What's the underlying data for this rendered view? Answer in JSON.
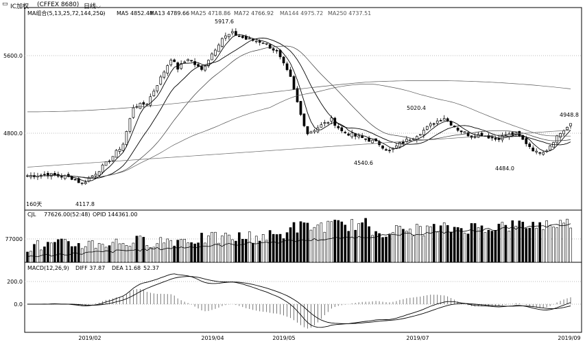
{
  "titlebar": {
    "instrument": "IC加权",
    "code": "(CFFEX 8680)",
    "period": "日线"
  },
  "price_panel": {
    "legend": {
      "ma_group": "MA组合(5,13,25,72,144,250)",
      "ma5": "MA5 4852.44",
      "ma13": "MA13 4789.66",
      "ma25": "MA25 4718.86",
      "ma72": "MA72 4766.92",
      "ma144": "MA144 4975.72",
      "ma250": "MA250 4737.51"
    },
    "axis_ticks": [
      "5600.0",
      "4800.0"
    ],
    "annotations": {
      "high": "5917.6",
      "low_start": "4117.8",
      "low_may": "4540.6",
      "high_jun": "5020.4",
      "low_aug": "4484.0",
      "last": "4948.8"
    },
    "days_label": "160天"
  },
  "volume_panel": {
    "legend": {
      "name": "CJL",
      "value": "77626.00(52:48)",
      "opid": "OPID 144361.00"
    },
    "axis_tick": "77000"
  },
  "macd_panel": {
    "legend": {
      "name": "MACD(12,26,9)",
      "diff": "DIFF 37.87",
      "dea": "DEA 11.68",
      "macd": "52.37"
    },
    "axis_ticks": [
      "200.0",
      "0.0"
    ]
  },
  "x_axis": {
    "labels": [
      "2019/02",
      "2019/04",
      "2019/05",
      "2019/07",
      "2019/09"
    ]
  },
  "chart_data": {
    "type": "candlestick",
    "y_price_ticks": [
      4800,
      5600
    ],
    "y_volume_tick": 77000,
    "y_macd_ticks": [
      0,
      200
    ],
    "anchors": [
      {
        "i": 0,
        "p": 4360
      },
      {
        "i": 6,
        "p": 4375
      },
      {
        "i": 13,
        "p": 4340
      },
      {
        "i": 16,
        "p": 4280
      },
      {
        "i": 20,
        "p": 4390
      },
      {
        "i": 24,
        "p": 4520
      },
      {
        "i": 28,
        "p": 4690
      },
      {
        "i": 31,
        "p": 5070
      },
      {
        "i": 35,
        "p": 5110
      },
      {
        "i": 39,
        "p": 5370
      },
      {
        "i": 42,
        "p": 5570
      },
      {
        "i": 44,
        "p": 5470
      },
      {
        "i": 47,
        "p": 5570
      },
      {
        "i": 51,
        "p": 5450
      },
      {
        "i": 54,
        "p": 5620
      },
      {
        "i": 57,
        "p": 5780
      },
      {
        "i": 60,
        "p": 5830
      },
      {
        "i": 64,
        "p": 5770
      },
      {
        "i": 69,
        "p": 5740
      },
      {
        "i": 73,
        "p": 5640
      },
      {
        "i": 77,
        "p": 5370
      },
      {
        "i": 80,
        "p": 4990
      },
      {
        "i": 82,
        "p": 4800
      },
      {
        "i": 86,
        "p": 4880
      },
      {
        "i": 89,
        "p": 4940
      },
      {
        "i": 92,
        "p": 4820
      },
      {
        "i": 96,
        "p": 4770
      },
      {
        "i": 100,
        "p": 4730
      },
      {
        "i": 103,
        "p": 4690
      },
      {
        "i": 106,
        "p": 4610
      },
      {
        "i": 109,
        "p": 4690
      },
      {
        "i": 113,
        "p": 4760
      },
      {
        "i": 116,
        "p": 4830
      },
      {
        "i": 119,
        "p": 4910
      },
      {
        "i": 122,
        "p": 4960
      },
      {
        "i": 126,
        "p": 4840
      },
      {
        "i": 130,
        "p": 4770
      },
      {
        "i": 133,
        "p": 4790
      },
      {
        "i": 137,
        "p": 4740
      },
      {
        "i": 140,
        "p": 4780
      },
      {
        "i": 143,
        "p": 4790
      },
      {
        "i": 146,
        "p": 4700
      },
      {
        "i": 149,
        "p": 4600
      },
      {
        "i": 152,
        "p": 4630
      },
      {
        "i": 155,
        "p": 4770
      },
      {
        "i": 158,
        "p": 4860
      },
      {
        "i": 159,
        "p": 4900
      }
    ],
    "last_volume": 77626,
    "last_opid": 144361,
    "last_macd": {
      "diff": 37.87,
      "dea": 11.68,
      "macd": 52.37
    }
  }
}
